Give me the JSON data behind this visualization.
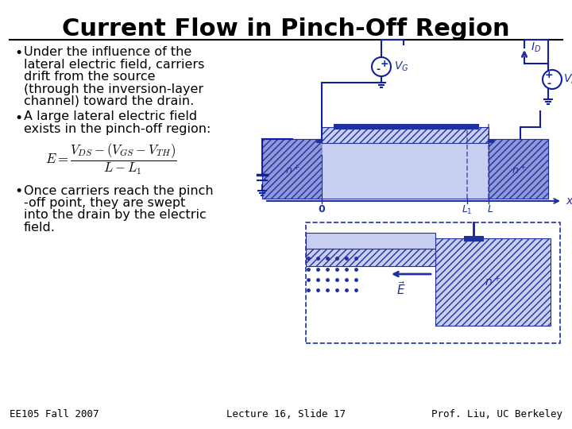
{
  "title": "Current Flow in Pinch-Off Region",
  "title_fontsize": 22,
  "title_fontweight": "bold",
  "title_color": "#000000",
  "background_color": "#ffffff",
  "bullet1_lines": [
    "Under the influence of the",
    "lateral electric field, carriers",
    "drift from the source",
    "(through the inversion-layer",
    "channel) toward the drain."
  ],
  "bullet2_lines": [
    "A large lateral electric field",
    "exists in the pinch-off region:"
  ],
  "bullet3_lines": [
    "Once carriers reach the pinch",
    "-off point, they are swept",
    "into the drain by the electric",
    "field."
  ],
  "footer_left": "EE105 Fall 2007",
  "footer_center": "Lecture 16, Slide 17",
  "footer_right": "Prof. Liu, UC Berkeley",
  "text_fontsize": 11.5,
  "footer_fontsize": 9,
  "formula_fontsize": 12,
  "diagram_color_light": "#c8cef0",
  "diagram_color_mid": "#9098d8",
  "diagram_color_dark": "#2030a0",
  "diagram_color_wire": "#1020a0"
}
